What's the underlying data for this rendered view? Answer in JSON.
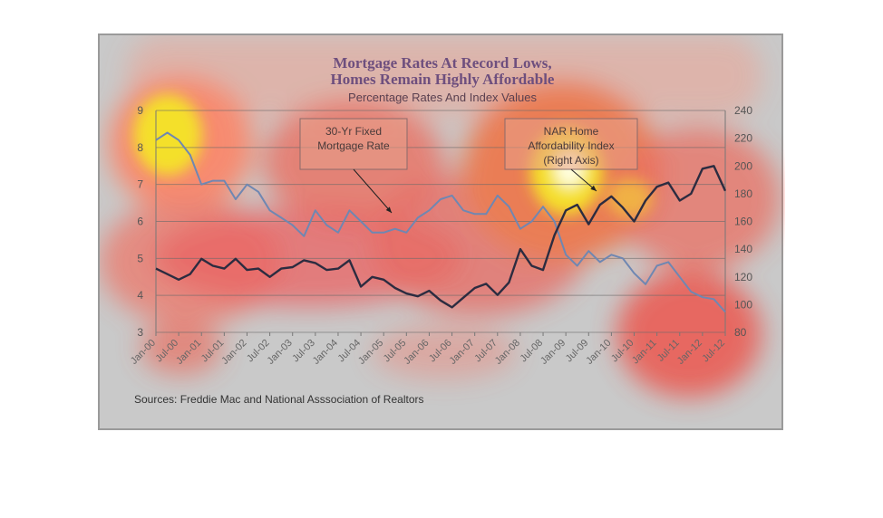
{
  "chart_data": {
    "type": "line",
    "title": "Mortgage Rates At Record Lows,",
    "title_line2": "Homes Remain Highly Affordable",
    "subtitle": "Percentage Rates And Index Values",
    "source": "Sources:  Freddie Mac and National Asssociation of Realtors",
    "x_tick_labels": [
      "Jan-00",
      "Jul-00",
      "Jan-01",
      "Jul-01",
      "Jan-02",
      "Jul-02",
      "Jan-03",
      "Jul-03",
      "Jan-04",
      "Jul-04",
      "Jan-05",
      "Jul-05",
      "Jan-06",
      "Jul-06",
      "Jan-07",
      "Jul-07",
      "Jan-08",
      "Jul-08",
      "Jan-09",
      "Jul-09",
      "Jan-10",
      "Jul-10",
      "Jan-11",
      "Jul-11",
      "Jan-12",
      "Jul-12"
    ],
    "left_axis": {
      "ticks": [
        3,
        4,
        5,
        6,
        7,
        8,
        9
      ],
      "range": [
        3,
        9
      ]
    },
    "right_axis": {
      "ticks": [
        80,
        100,
        120,
        140,
        160,
        180,
        200,
        220,
        240
      ],
      "range": [
        80,
        240
      ]
    },
    "grid": "horizontal",
    "annotations": [
      {
        "id": "mortgage",
        "line1": "30-Yr Fixed",
        "line2": "Mortgage Rate",
        "line3": ""
      },
      {
        "id": "nar",
        "line1": "NAR Home",
        "line2": "Affordability Index",
        "line3": "(Right Axis)"
      }
    ],
    "colors": {
      "mortgage": "#6f87b2",
      "affordability": "#2c2c40",
      "background": "#c9c9c9"
    },
    "series": [
      {
        "name": "30-Yr Fixed Mortgage Rate",
        "axis": "left",
        "x": [
          "Jan-00",
          "Apr-00",
          "Jul-00",
          "Oct-00",
          "Jan-01",
          "Apr-01",
          "Jul-01",
          "Oct-01",
          "Jan-02",
          "Apr-02",
          "Jul-02",
          "Oct-02",
          "Jan-03",
          "Apr-03",
          "Jul-03",
          "Oct-03",
          "Jan-04",
          "Apr-04",
          "Jul-04",
          "Oct-04",
          "Jan-05",
          "Apr-05",
          "Jul-05",
          "Oct-05",
          "Jan-06",
          "Apr-06",
          "Jul-06",
          "Oct-06",
          "Jan-07",
          "Apr-07",
          "Jul-07",
          "Oct-07",
          "Jan-08",
          "Apr-08",
          "Jul-08",
          "Oct-08",
          "Jan-09",
          "Apr-09",
          "Jul-09",
          "Oct-09",
          "Jan-10",
          "Apr-10",
          "Jul-10",
          "Oct-10",
          "Jan-11",
          "Apr-11",
          "Jul-11",
          "Oct-11",
          "Jan-12",
          "Apr-12",
          "Jul-12"
        ],
        "values": [
          8.2,
          8.4,
          8.2,
          7.8,
          7.0,
          7.1,
          7.1,
          6.6,
          7.0,
          6.8,
          6.3,
          6.1,
          5.9,
          5.6,
          6.3,
          5.9,
          5.7,
          6.3,
          6.0,
          5.7,
          5.7,
          5.8,
          5.7,
          6.1,
          6.3,
          6.6,
          6.7,
          6.3,
          6.2,
          6.2,
          6.7,
          6.4,
          5.8,
          6.0,
          6.4,
          6.0,
          5.1,
          4.8,
          5.2,
          4.9,
          5.1,
          5.0,
          4.6,
          4.3,
          4.8,
          4.9,
          4.5,
          4.1,
          3.95,
          3.9,
          3.55
        ]
      },
      {
        "name": "NAR Home Affordability Index",
        "axis": "right",
        "x": [
          "Jan-00",
          "Apr-00",
          "Jul-00",
          "Oct-00",
          "Jan-01",
          "Apr-01",
          "Jul-01",
          "Oct-01",
          "Jan-02",
          "Apr-02",
          "Jul-02",
          "Oct-02",
          "Jan-03",
          "Apr-03",
          "Jul-03",
          "Oct-03",
          "Jan-04",
          "Apr-04",
          "Jul-04",
          "Oct-04",
          "Jan-05",
          "Apr-05",
          "Jul-05",
          "Oct-05",
          "Jan-06",
          "Apr-06",
          "Jul-06",
          "Oct-06",
          "Jan-07",
          "Apr-07",
          "Jul-07",
          "Oct-07",
          "Jan-08",
          "Apr-08",
          "Jul-08",
          "Oct-08",
          "Jan-09",
          "Apr-09",
          "Jul-09",
          "Oct-09",
          "Jan-10",
          "Apr-10",
          "Jul-10",
          "Oct-10",
          "Jan-11",
          "Apr-11",
          "Jul-11",
          "Oct-11",
          "Jan-12",
          "Apr-12",
          "Jul-12"
        ],
        "values": [
          126,
          122,
          118,
          122,
          133,
          128,
          126,
          133,
          125,
          126,
          120,
          126,
          127,
          132,
          130,
          125,
          126,
          132,
          113,
          120,
          118,
          112,
          108,
          106,
          110,
          103,
          98,
          105,
          112,
          115,
          107,
          116,
          140,
          128,
          125,
          150,
          168,
          172,
          158,
          172,
          178,
          170,
          160,
          175,
          185,
          188,
          175,
          180,
          198,
          200,
          182
        ]
      }
    ]
  }
}
